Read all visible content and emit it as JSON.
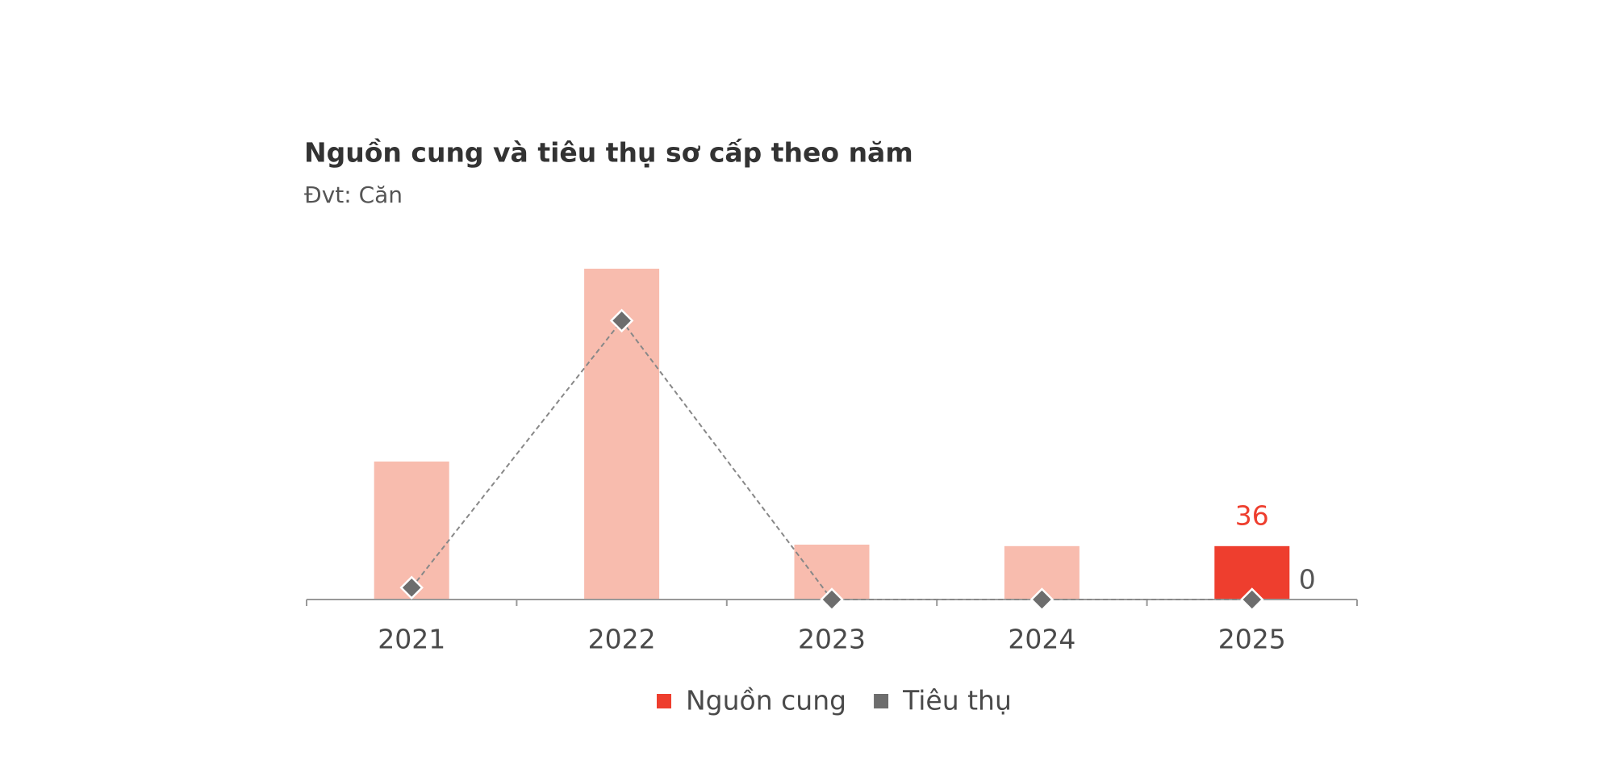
{
  "chart_data": {
    "type": "bar_line",
    "title": "Nguồn cung và tiêu thụ sơ cấp theo năm",
    "subtitle": "Đvt: Căn",
    "categories": [
      "2021",
      "2022",
      "2023",
      "2024",
      "2025"
    ],
    "series": [
      {
        "name": "Nguồn cung",
        "type": "bar",
        "color": "#ee3e2e",
        "bar_colors": [
          "#f8bcae",
          "#f8bcae",
          "#f8bcae",
          "#f8bcae",
          "#ee3e2e"
        ],
        "values": [
          93,
          223,
          37,
          36,
          36
        ],
        "label_last": true
      },
      {
        "name": "Tiêu thụ",
        "type": "line",
        "color": "#6d6d6d",
        "values": [
          8,
          188,
          0,
          0,
          0
        ],
        "label_last": true
      }
    ],
    "legend": "bottom"
  }
}
